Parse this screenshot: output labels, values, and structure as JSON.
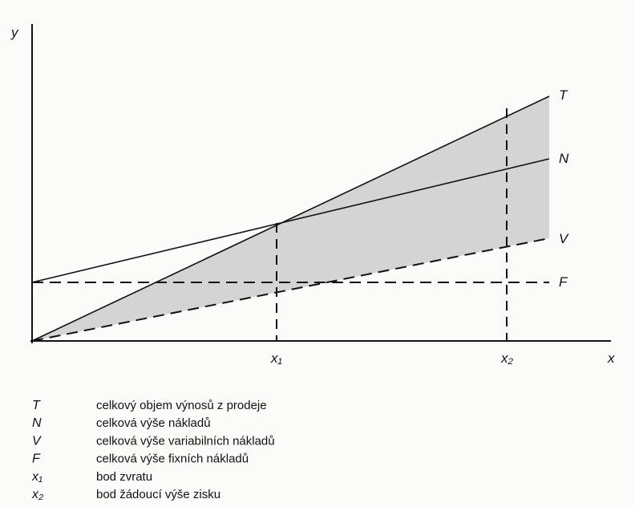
{
  "diagram": {
    "axis_labels": {
      "y": "y",
      "x": "x"
    },
    "line_labels": {
      "T": "T",
      "N": "N",
      "V": "V",
      "F": "F"
    },
    "points": {
      "x1": "x₁",
      "x2": "x₂"
    },
    "legend": [
      {
        "symbol": "T",
        "text": "celkový objem výnosů z prodeje"
      },
      {
        "symbol": "N",
        "text": "celková výše nákladů"
      },
      {
        "symbol": "V",
        "text": "celková výše variabilních nákladů"
      },
      {
        "symbol": "F",
        "text": "celková výše fixních nákladů"
      },
      {
        "symbol": "x₁",
        "text": "bod zvratu"
      },
      {
        "symbol": "x₂",
        "text": "bod žádoucí výše zisku"
      }
    ]
  }
}
